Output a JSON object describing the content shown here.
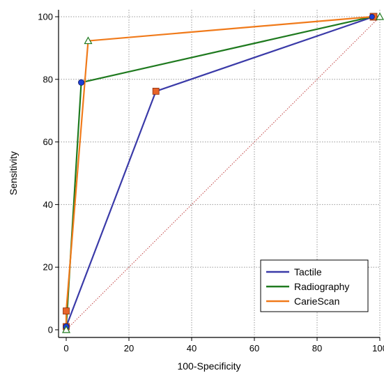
{
  "chart_data": {
    "type": "line",
    "xlabel": "100-Specificity",
    "ylabel": "Sensitivity",
    "xlim": [
      0,
      100
    ],
    "ylim": [
      0,
      100
    ],
    "x_ticks": [
      "0",
      "20",
      "40",
      "60",
      "80",
      "100"
    ],
    "y_ticks": [
      "0",
      "20",
      "40",
      "60",
      "80",
      "100"
    ],
    "grid": "dotted",
    "legend_position": "bottom-right",
    "reference_line": {
      "x": [
        0,
        100
      ],
      "y": [
        0,
        100
      ],
      "color": "#c04040",
      "style": "dotted"
    },
    "series": [
      {
        "name": "Tactile",
        "color": "#3a3aa8",
        "marker_fill": "#e8642a",
        "marker": "square",
        "points": [
          [
            0,
            0
          ],
          [
            0,
            1
          ],
          [
            28.6,
            76.2
          ],
          [
            98,
            100
          ],
          [
            100,
            100
          ]
        ]
      },
      {
        "name": "Radiography",
        "color": "#1f7a1f",
        "marker_fill": "#1a3fd6",
        "marker": "circle",
        "points": [
          [
            0,
            0
          ],
          [
            0,
            1
          ],
          [
            4.8,
            79
          ],
          [
            97.5,
            100
          ],
          [
            100,
            100
          ]
        ]
      },
      {
        "name": "CarieScan",
        "color": "#f07a1a",
        "marker_fill": "#e8642a",
        "marker": "square",
        "points": [
          [
            0,
            0
          ],
          [
            0,
            6
          ],
          [
            7,
            92.3
          ],
          [
            97.5,
            100
          ],
          [
            100,
            100
          ]
        ]
      }
    ]
  }
}
